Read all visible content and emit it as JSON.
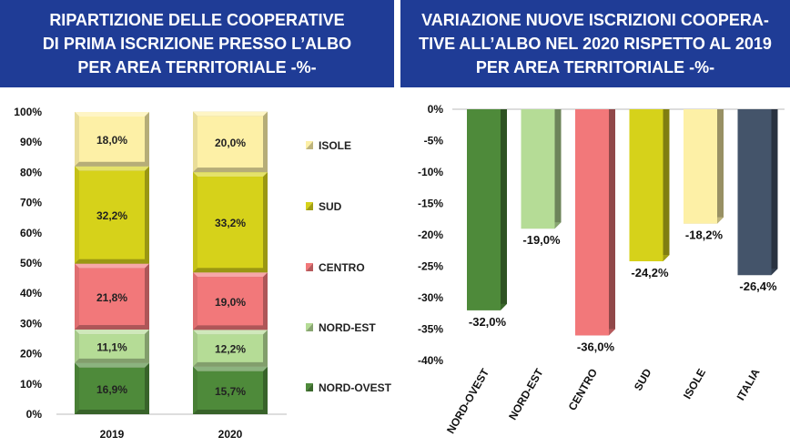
{
  "chart_data": [
    {
      "type": "bar",
      "stacked": true,
      "title": [
        "RIPARTIZIONE DELLE COOPERATIVE",
        "DI PRIMA ISCRIZIONE PRESSO L’ALBO",
        "PER AREA TERRITORIALE -%-"
      ],
      "categories": [
        "2019",
        "2020"
      ],
      "y_ticks": [
        "0%",
        "10%",
        "20%",
        "30%",
        "40%",
        "50%",
        "60%",
        "70%",
        "80%",
        "90%",
        "100%"
      ],
      "ylim": [
        0,
        100
      ],
      "legend_position": "right",
      "series": [
        {
          "name": "NORD-OVEST",
          "values": [
            16.9,
            15.7
          ],
          "labels": [
            "16,9%",
            "15,7%"
          ],
          "color": "#4e8a3a"
        },
        {
          "name": "NORD-EST",
          "values": [
            11.1,
            12.2
          ],
          "labels": [
            "11,1%",
            "12,2%"
          ],
          "color": "#b5dc96"
        },
        {
          "name": "CENTRO",
          "values": [
            21.8,
            19.0
          ],
          "labels": [
            "21,8%",
            "19,0%"
          ],
          "color": "#f2787a"
        },
        {
          "name": "SUD",
          "values": [
            32.2,
            33.2
          ],
          "labels": [
            "32,2%",
            "33,2%"
          ],
          "color": "#d6d21a"
        },
        {
          "name": "ISOLE",
          "values": [
            18.0,
            20.0
          ],
          "labels": [
            "18,0%",
            "20,0%"
          ],
          "color": "#fdf0a6"
        }
      ]
    },
    {
      "type": "bar",
      "title": [
        "VARIAZIONE NUOVE ISCRIZIONI COOPERA-",
        "TIVE ALL’ALBO NEL 2020 RISPETTO AL 2019",
        "PER AREA TERRITORIALE -%-"
      ],
      "categories": [
        "NORD-OVEST",
        "NORD-EST",
        "CENTRO",
        "SUD",
        "ISOLE",
        "ITALIA"
      ],
      "values": [
        -32.0,
        -19.0,
        -36.0,
        -24.2,
        -18.2,
        -26.4
      ],
      "labels": [
        "-32,0%",
        "-19,0%",
        "-36,0%",
        "-24,2%",
        "-18,2%",
        "-26,4%"
      ],
      "colors": [
        "#4e8a3a",
        "#b5dc96",
        "#f2787a",
        "#d6d21a",
        "#fdf0a6",
        "#44546a"
      ],
      "y_ticks": [
        "0%",
        "-5%",
        "-10%",
        "-15%",
        "-20%",
        "-25%",
        "-30%",
        "-35%",
        "-40%"
      ],
      "ylim": [
        -40,
        0
      ]
    }
  ]
}
